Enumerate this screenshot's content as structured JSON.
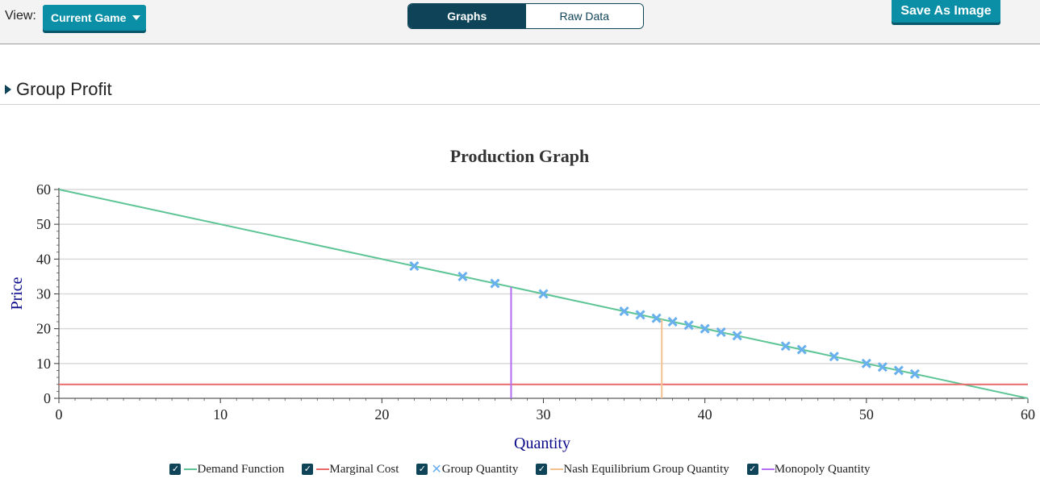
{
  "toolbar": {
    "view_label": "View:",
    "view_value": "Current Game",
    "tabs": [
      {
        "label": "Graphs",
        "active": true
      },
      {
        "label": "Raw Data",
        "active": false
      }
    ],
    "save_label": "Save As Image"
  },
  "section": {
    "title": "Group Profit"
  },
  "chart_data": {
    "type": "line",
    "title": "Production Graph",
    "xlabel": "Quantity",
    "ylabel": "Price",
    "xlim": [
      0,
      60
    ],
    "ylim": [
      0,
      60
    ],
    "xticks": [
      0,
      10,
      20,
      30,
      40,
      50,
      60
    ],
    "yticks": [
      0,
      10,
      20,
      30,
      40,
      50,
      60
    ],
    "grid": "horizontal",
    "series": [
      {
        "name": "Demand Function",
        "kind": "line",
        "color": "#5cc495",
        "x": [
          0,
          60
        ],
        "y": [
          60,
          0
        ]
      },
      {
        "name": "Marginal Cost",
        "kind": "hline",
        "color": "#e86a6a",
        "y": 4
      },
      {
        "name": "Group Quantity",
        "kind": "scatter",
        "color": "#6ab0ee",
        "x": [
          22,
          25,
          27,
          30,
          35,
          36,
          37,
          38,
          39,
          40,
          41,
          42,
          45,
          46,
          48,
          50,
          51,
          52,
          53
        ],
        "y": [
          38,
          35,
          33,
          30,
          25,
          24,
          23,
          22,
          21,
          20,
          19,
          18,
          15,
          14,
          12,
          10,
          9,
          8,
          7
        ]
      },
      {
        "name": "Nash Equilibrium Group Quantity",
        "kind": "vline",
        "color": "#f5c08f",
        "x": 37.33,
        "y": 22.67
      },
      {
        "name": "Monopoly Quantity",
        "kind": "vline",
        "color": "#b46cf0",
        "x": 28,
        "y": 32
      }
    ]
  }
}
